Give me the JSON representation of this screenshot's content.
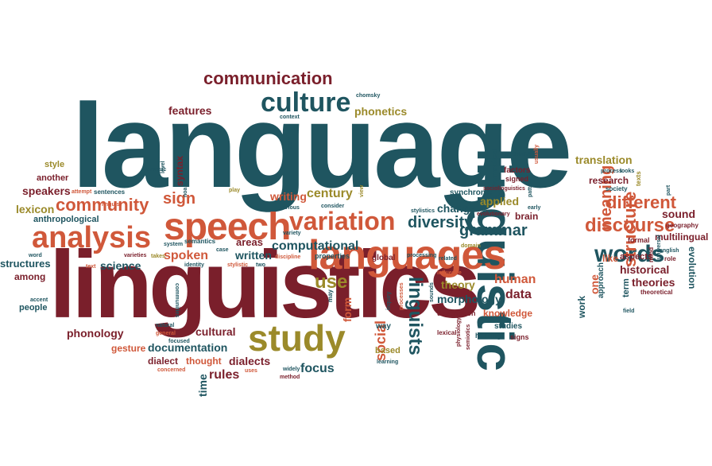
{
  "colors": {
    "teal": "#1f5560",
    "maroon": "#7a1f2b",
    "orange": "#d0583a",
    "olive": "#9b8a2a"
  },
  "words": [
    {
      "text": "language",
      "color": "teal"
    },
    {
      "text": "linguistics",
      "color": "maroon"
    },
    {
      "text": "linguistic",
      "color": "teal"
    },
    {
      "text": "languages",
      "color": "orange"
    },
    {
      "text": "speech",
      "color": "orange"
    },
    {
      "text": "analysis",
      "color": "orange"
    },
    {
      "text": "study",
      "color": "olive"
    },
    {
      "text": "variation",
      "color": "orange"
    },
    {
      "text": "culture",
      "color": "teal"
    },
    {
      "text": "communication",
      "color": "maroon"
    },
    {
      "text": "words",
      "color": "teal"
    },
    {
      "text": "discourse",
      "color": "orange"
    },
    {
      "text": "community",
      "color": "orange"
    },
    {
      "text": "structure",
      "color": "orange"
    },
    {
      "text": "meaning",
      "color": "orange"
    },
    {
      "text": "different",
      "color": "orange"
    },
    {
      "text": "linguists",
      "color": "teal"
    },
    {
      "text": "grammar",
      "color": "teal"
    },
    {
      "text": "use",
      "color": "olive"
    },
    {
      "text": "diversity",
      "color": "teal"
    },
    {
      "text": "features",
      "color": "maroon"
    },
    {
      "text": "phonetics",
      "color": "olive"
    },
    {
      "text": "translation",
      "color": "olive"
    },
    {
      "text": "century",
      "color": "olive"
    },
    {
      "text": "sign",
      "color": "orange"
    },
    {
      "text": "change",
      "color": "teal"
    },
    {
      "text": "applied",
      "color": "olive"
    },
    {
      "text": "sound",
      "color": "maroon"
    },
    {
      "text": "research",
      "color": "maroon"
    },
    {
      "text": "writing",
      "color": "orange"
    },
    {
      "text": "speakers",
      "color": "maroon"
    },
    {
      "text": "lexicon",
      "color": "olive"
    },
    {
      "text": "computational",
      "color": "teal"
    },
    {
      "text": "written",
      "color": "teal"
    },
    {
      "text": "spoken",
      "color": "orange"
    },
    {
      "text": "areas",
      "color": "maroon"
    },
    {
      "text": "science",
      "color": "teal"
    },
    {
      "text": "structures",
      "color": "teal"
    },
    {
      "text": "theory",
      "color": "olive"
    },
    {
      "text": "human",
      "color": "orange"
    },
    {
      "text": "data",
      "color": "maroon"
    },
    {
      "text": "morphology",
      "color": "teal"
    },
    {
      "text": "knowledge",
      "color": "orange"
    },
    {
      "text": "historical",
      "color": "maroon"
    },
    {
      "text": "theories",
      "color": "maroon"
    },
    {
      "text": "evolution",
      "color": "teal"
    },
    {
      "text": "multilingual",
      "color": "maroon"
    },
    {
      "text": "phonology",
      "color": "maroon"
    },
    {
      "text": "cultural",
      "color": "maroon"
    },
    {
      "text": "documentation",
      "color": "teal"
    },
    {
      "text": "gesture",
      "color": "orange"
    },
    {
      "text": "thought",
      "color": "orange"
    },
    {
      "text": "dialects",
      "color": "maroon"
    },
    {
      "text": "dialect",
      "color": "maroon"
    },
    {
      "text": "rules",
      "color": "maroon"
    },
    {
      "text": "focus",
      "color": "teal"
    },
    {
      "text": "social",
      "color": "orange"
    },
    {
      "text": "form",
      "color": "orange"
    },
    {
      "text": "time",
      "color": "teal"
    },
    {
      "text": "people",
      "color": "teal"
    },
    {
      "text": "among",
      "color": "maroon"
    },
    {
      "text": "another",
      "color": "maroon"
    },
    {
      "text": "style",
      "color": "olive"
    },
    {
      "text": "anthropological",
      "color": "teal"
    },
    {
      "text": "syntax",
      "color": "maroon"
    },
    {
      "text": "one",
      "color": "orange"
    },
    {
      "text": "work",
      "color": "teal"
    },
    {
      "text": "like",
      "color": "orange"
    },
    {
      "text": "aspects",
      "color": "maroon"
    },
    {
      "text": "term",
      "color": "teal"
    },
    {
      "text": "synchronic",
      "color": "teal"
    },
    {
      "text": "brain",
      "color": "maroon"
    },
    {
      "text": "global",
      "color": "maroon"
    },
    {
      "text": "properties",
      "color": "teal"
    },
    {
      "text": "based",
      "color": "olive"
    },
    {
      "text": "way",
      "color": "teal"
    },
    {
      "text": "studies",
      "color": "teal"
    },
    {
      "text": "hearing",
      "color": "teal"
    },
    {
      "text": "signs",
      "color": "maroon"
    },
    {
      "text": "description",
      "color": "maroon"
    },
    {
      "text": "approach",
      "color": "teal"
    },
    {
      "text": "sentences",
      "color": "teal"
    },
    {
      "text": "systems",
      "color": "teal"
    },
    {
      "text": "factors",
      "color": "maroon"
    },
    {
      "text": "signed",
      "color": "maroon"
    },
    {
      "text": "grammatical",
      "color": "teal"
    },
    {
      "text": "formal",
      "color": "maroon"
    },
    {
      "text": "society",
      "color": "teal"
    },
    {
      "text": "texts",
      "color": "olive"
    },
    {
      "text": "geography",
      "color": "maroon"
    },
    {
      "text": "evolutionary",
      "color": "maroon"
    },
    {
      "text": "stylistics",
      "color": "teal"
    },
    {
      "text": "processing",
      "color": "teal"
    },
    {
      "text": "variety",
      "color": "teal"
    },
    {
      "text": "semantics",
      "color": "teal"
    },
    {
      "text": "system",
      "color": "teal"
    },
    {
      "text": "varieties",
      "color": "maroon"
    },
    {
      "text": "takes",
      "color": "olive"
    },
    {
      "text": "identity",
      "color": "teal"
    },
    {
      "text": "stylistic",
      "color": "orange"
    },
    {
      "text": "two",
      "color": "teal"
    },
    {
      "text": "discipline",
      "color": "orange"
    },
    {
      "text": "case",
      "color": "teal"
    },
    {
      "text": "word",
      "color": "teal"
    },
    {
      "text": "accent",
      "color": "teal"
    },
    {
      "text": "natural",
      "color": "teal"
    },
    {
      "text": "general",
      "color": "orange"
    },
    {
      "text": "focused",
      "color": "teal"
    },
    {
      "text": "concerned",
      "color": "orange"
    },
    {
      "text": "uses",
      "color": "orange"
    },
    {
      "text": "widely",
      "color": "teal"
    },
    {
      "text": "method",
      "color": "maroon"
    },
    {
      "text": "learning",
      "color": "teal"
    },
    {
      "text": "lexical",
      "color": "maroon"
    },
    {
      "text": "inquiry",
      "color": "teal"
    },
    {
      "text": "processes",
      "color": "orange"
    },
    {
      "text": "sounds",
      "color": "teal"
    },
    {
      "text": "influence",
      "color": "orange"
    },
    {
      "text": "related",
      "color": "teal"
    },
    {
      "text": "physiology",
      "color": "maroon"
    },
    {
      "text": "semiotics",
      "color": "maroon"
    },
    {
      "text": "communities",
      "color": "teal"
    },
    {
      "text": "linguist",
      "color": "orange"
    },
    {
      "text": "text",
      "color": "orange"
    },
    {
      "text": "attempt",
      "color": "orange"
    },
    {
      "text": "forensic",
      "color": "teal"
    },
    {
      "text": "noam",
      "color": "teal"
    },
    {
      "text": "level",
      "color": "teal"
    },
    {
      "text": "play",
      "color": "olive"
    },
    {
      "text": "many",
      "color": "teal"
    },
    {
      "text": "context",
      "color": "teal"
    },
    {
      "text": "chomsky",
      "color": "teal"
    },
    {
      "text": "various",
      "color": "teal"
    },
    {
      "text": "consider",
      "color": "teal"
    },
    {
      "text": "view",
      "color": "olive"
    },
    {
      "text": "sociolinguistics",
      "color": "maroon"
    },
    {
      "text": "domain",
      "color": "olive"
    },
    {
      "text": "pattern",
      "color": "teal"
    },
    {
      "text": "process",
      "color": "teal"
    },
    {
      "text": "looks",
      "color": "teal"
    },
    {
      "text": "usually",
      "color": "orange"
    },
    {
      "text": "early",
      "color": "teal"
    },
    {
      "text": "english",
      "color": "teal"
    },
    {
      "text": "universal",
      "color": "teal"
    },
    {
      "text": "mind",
      "color": "maroon"
    },
    {
      "text": "role",
      "color": "maroon"
    },
    {
      "text": "theoretical",
      "color": "maroon"
    },
    {
      "text": "field",
      "color": "teal"
    },
    {
      "text": "part",
      "color": "teal"
    },
    {
      "text": "may",
      "color": "teal"
    }
  ]
}
